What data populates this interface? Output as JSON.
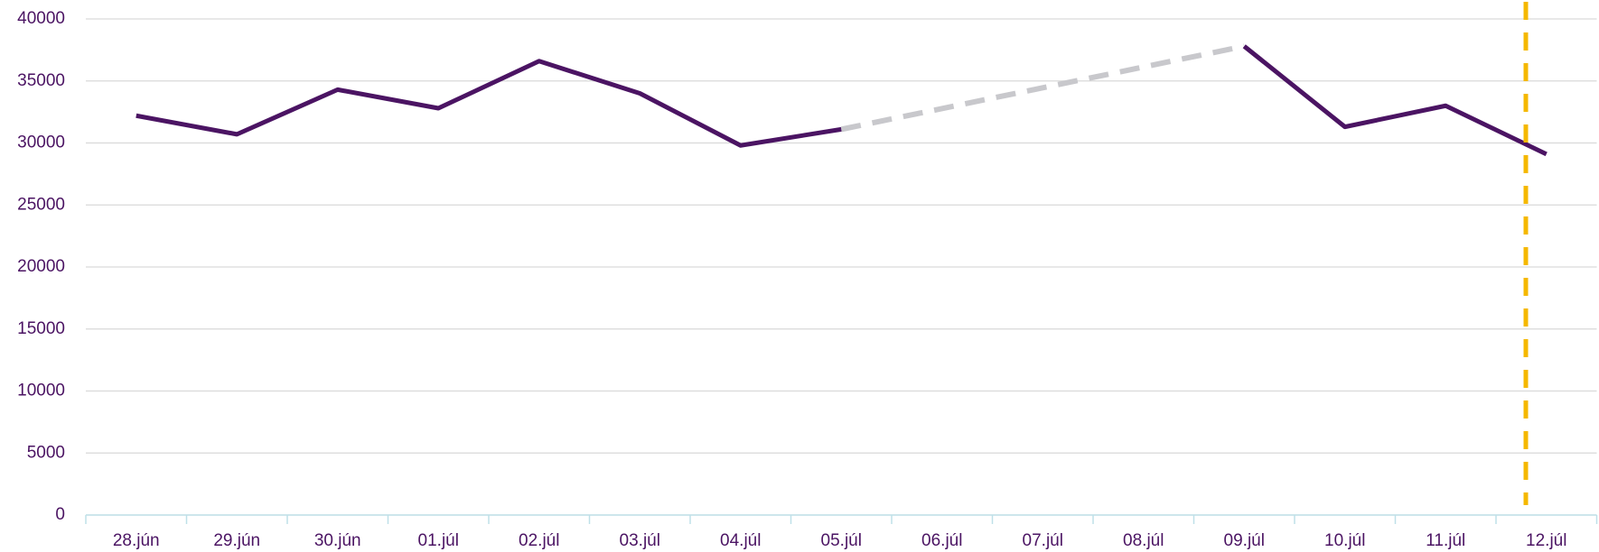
{
  "chart_data": {
    "type": "line",
    "categories": [
      "28.jún",
      "29.jún",
      "30.jún",
      "01.júl",
      "02.júl",
      "03.júl",
      "04.júl",
      "05.júl",
      "06.júl",
      "07.júl",
      "08.júl",
      "09.júl",
      "10.júl",
      "11.júl",
      "12.júl"
    ],
    "series": [
      {
        "color": "#4b1463",
        "values": [
          32200,
          30700,
          34300,
          32800,
          36600,
          34000,
          29800,
          31100,
          null,
          null,
          null,
          37800,
          31300,
          33000,
          29100
        ]
      }
    ],
    "gap_color": "#c8c8cc",
    "ylim": [
      0,
      40000
    ],
    "yticks": [
      0,
      5000,
      10000,
      15000,
      20000,
      25000,
      30000,
      35000,
      40000
    ],
    "grid": true
  }
}
